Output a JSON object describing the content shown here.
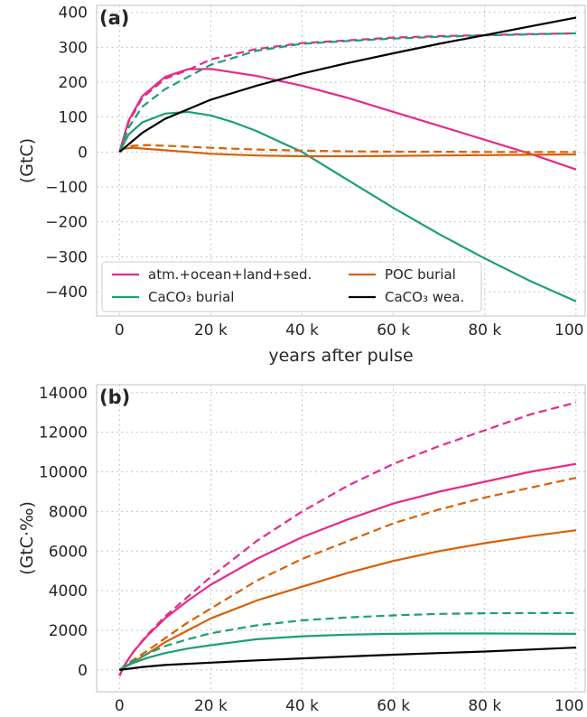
{
  "chart_data": [
    {
      "type": "line",
      "panel_label": "(a)",
      "xlabel": "years after pulse",
      "ylabel": "(GtC)",
      "xlim": [
        -5000,
        102000
      ],
      "ylim": [
        -470,
        420
      ],
      "x_ticks": [
        0,
        20000,
        40000,
        60000,
        80000,
        100000
      ],
      "x_tick_labels": [
        "0",
        "20 k",
        "40 k",
        "60 k",
        "80 k",
        "100 k"
      ],
      "y_ticks": [
        400,
        300,
        200,
        100,
        0,
        -100,
        -200,
        -300,
        -400
      ],
      "y_tick_labels": [
        "400",
        "300",
        "200",
        "100",
        "0",
        "−100",
        "−200",
        "−300",
        "−400"
      ],
      "grid": true,
      "legend_position": "bottom-left",
      "legend": [
        {
          "label": "atm.+ocean+land+sed.",
          "color": "#e7298a"
        },
        {
          "label": "POC burial",
          "color": "#d95f02"
        },
        {
          "label": "CaCO₃ burial",
          "color": "#1b9e77"
        },
        {
          "label": "CaCO₃ wea.",
          "color": "#000000"
        }
      ],
      "series": [
        {
          "color": "#e7298a",
          "style": "solid",
          "x": [
            0,
            2000,
            5000,
            10000,
            15000,
            20000,
            30000,
            40000,
            50000,
            60000,
            70000,
            80000,
            90000,
            100000
          ],
          "y": [
            0,
            90,
            160,
            215,
            237,
            238,
            218,
            190,
            155,
            115,
            75,
            35,
            -5,
            -50
          ]
        },
        {
          "color": "#e7298a",
          "style": "dashed",
          "x": [
            0,
            2000,
            5000,
            10000,
            15000,
            20000,
            30000,
            40000,
            50000,
            60000,
            70000,
            80000,
            90000,
            100000
          ],
          "y": [
            0,
            85,
            155,
            210,
            235,
            265,
            295,
            312,
            320,
            328,
            332,
            335,
            338,
            340
          ]
        },
        {
          "color": "#1b9e77",
          "style": "solid",
          "x": [
            0,
            2000,
            5000,
            10000,
            15000,
            20000,
            25000,
            30000,
            35000,
            40000,
            50000,
            60000,
            70000,
            80000,
            90000,
            100000
          ],
          "y": [
            0,
            50,
            85,
            110,
            115,
            105,
            85,
            60,
            30,
            0,
            -80,
            -160,
            -235,
            -305,
            -370,
            -428
          ]
        },
        {
          "color": "#1b9e77",
          "style": "dashed",
          "x": [
            0,
            2000,
            5000,
            10000,
            15000,
            20000,
            30000,
            40000,
            50000,
            60000,
            70000,
            80000,
            90000,
            100000
          ],
          "y": [
            0,
            70,
            130,
            180,
            215,
            250,
            290,
            310,
            318,
            325,
            330,
            334,
            337,
            340
          ]
        },
        {
          "color": "#d95f02",
          "style": "solid",
          "x": [
            0,
            1000,
            3000,
            6000,
            10000,
            15000,
            20000,
            30000,
            40000,
            50000,
            60000,
            70000,
            80000,
            90000,
            100000
          ],
          "y": [
            0,
            10,
            12,
            9,
            5,
            0,
            -5,
            -10,
            -12,
            -12,
            -11,
            -10,
            -9,
            -8,
            -7
          ]
        },
        {
          "color": "#d95f02",
          "style": "dashed",
          "x": [
            0,
            1000,
            3000,
            6000,
            10000,
            15000,
            20000,
            30000,
            40000,
            50000,
            60000,
            70000,
            80000,
            90000,
            100000
          ],
          "y": [
            0,
            12,
            18,
            20,
            18,
            15,
            12,
            7,
            4,
            2,
            1,
            1,
            0,
            0,
            0
          ]
        },
        {
          "color": "#000000",
          "style": "solid",
          "x": [
            0,
            5000,
            10000,
            20000,
            30000,
            40000,
            50000,
            60000,
            70000,
            80000,
            90000,
            100000
          ],
          "y": [
            0,
            55,
            95,
            150,
            190,
            225,
            255,
            283,
            310,
            335,
            360,
            385
          ]
        }
      ]
    },
    {
      "type": "line",
      "panel_label": "(b)",
      "xlabel": "",
      "ylabel": "(GtC·‰)",
      "xlim": [
        -5000,
        102000
      ],
      "ylim": [
        -1100,
        14400
      ],
      "x_ticks": [
        0,
        20000,
        40000,
        60000,
        80000,
        100000
      ],
      "x_tick_labels": [
        "0",
        "20 k",
        "40 k",
        "60 k",
        "80 k",
        "100 k"
      ],
      "y_ticks": [
        14000,
        12000,
        10000,
        8000,
        6000,
        4000,
        2000,
        0
      ],
      "y_tick_labels": [
        "14000",
        "12000",
        "10000",
        "8000",
        "6000",
        "4000",
        "2000",
        "0"
      ],
      "grid": true,
      "series": [
        {
          "color": "#e7298a",
          "style": "solid",
          "x": [
            0,
            1000,
            3000,
            6000,
            10000,
            15000,
            20000,
            30000,
            40000,
            50000,
            60000,
            70000,
            80000,
            90000,
            100000
          ],
          "y": [
            -300,
            200,
            900,
            1700,
            2600,
            3500,
            4300,
            5600,
            6700,
            7600,
            8400,
            9000,
            9500,
            10000,
            10400
          ]
        },
        {
          "color": "#e7298a",
          "style": "dashed",
          "x": [
            0,
            1000,
            3000,
            6000,
            10000,
            15000,
            20000,
            30000,
            40000,
            50000,
            60000,
            70000,
            80000,
            90000,
            100000
          ],
          "y": [
            -300,
            200,
            900,
            1750,
            2700,
            3700,
            4700,
            6500,
            8000,
            9300,
            10400,
            11300,
            12100,
            12900,
            13500
          ]
        },
        {
          "color": "#d95f02",
          "style": "solid",
          "x": [
            0,
            1000,
            3000,
            6000,
            10000,
            15000,
            20000,
            30000,
            40000,
            50000,
            60000,
            70000,
            80000,
            90000,
            100000
          ],
          "y": [
            0,
            150,
            400,
            800,
            1400,
            2000,
            2600,
            3500,
            4200,
            4900,
            5500,
            6000,
            6400,
            6750,
            7050
          ]
        },
        {
          "color": "#d95f02",
          "style": "dashed",
          "x": [
            0,
            1000,
            3000,
            6000,
            10000,
            15000,
            20000,
            30000,
            40000,
            50000,
            60000,
            70000,
            80000,
            90000,
            100000
          ],
          "y": [
            0,
            180,
            500,
            950,
            1600,
            2400,
            3100,
            4500,
            5600,
            6500,
            7400,
            8100,
            8700,
            9200,
            9700
          ]
        },
        {
          "color": "#1b9e77",
          "style": "solid",
          "x": [
            0,
            1000,
            3000,
            6000,
            10000,
            15000,
            20000,
            30000,
            40000,
            50000,
            60000,
            70000,
            80000,
            90000,
            100000
          ],
          "y": [
            0,
            120,
            350,
            600,
            850,
            1080,
            1250,
            1550,
            1700,
            1780,
            1820,
            1840,
            1840,
            1830,
            1820
          ]
        },
        {
          "color": "#1b9e77",
          "style": "dashed",
          "x": [
            0,
            1000,
            3000,
            6000,
            10000,
            15000,
            20000,
            30000,
            40000,
            50000,
            60000,
            70000,
            80000,
            90000,
            100000
          ],
          "y": [
            0,
            150,
            450,
            800,
            1200,
            1550,
            1850,
            2250,
            2500,
            2650,
            2750,
            2830,
            2860,
            2870,
            2870
          ]
        },
        {
          "color": "#000000",
          "style": "solid",
          "x": [
            0,
            5000,
            10000,
            20000,
            30000,
            40000,
            50000,
            60000,
            70000,
            80000,
            90000,
            100000
          ],
          "y": [
            0,
            150,
            250,
            370,
            480,
            580,
            680,
            770,
            850,
            930,
            1030,
            1130
          ]
        }
      ]
    }
  ]
}
